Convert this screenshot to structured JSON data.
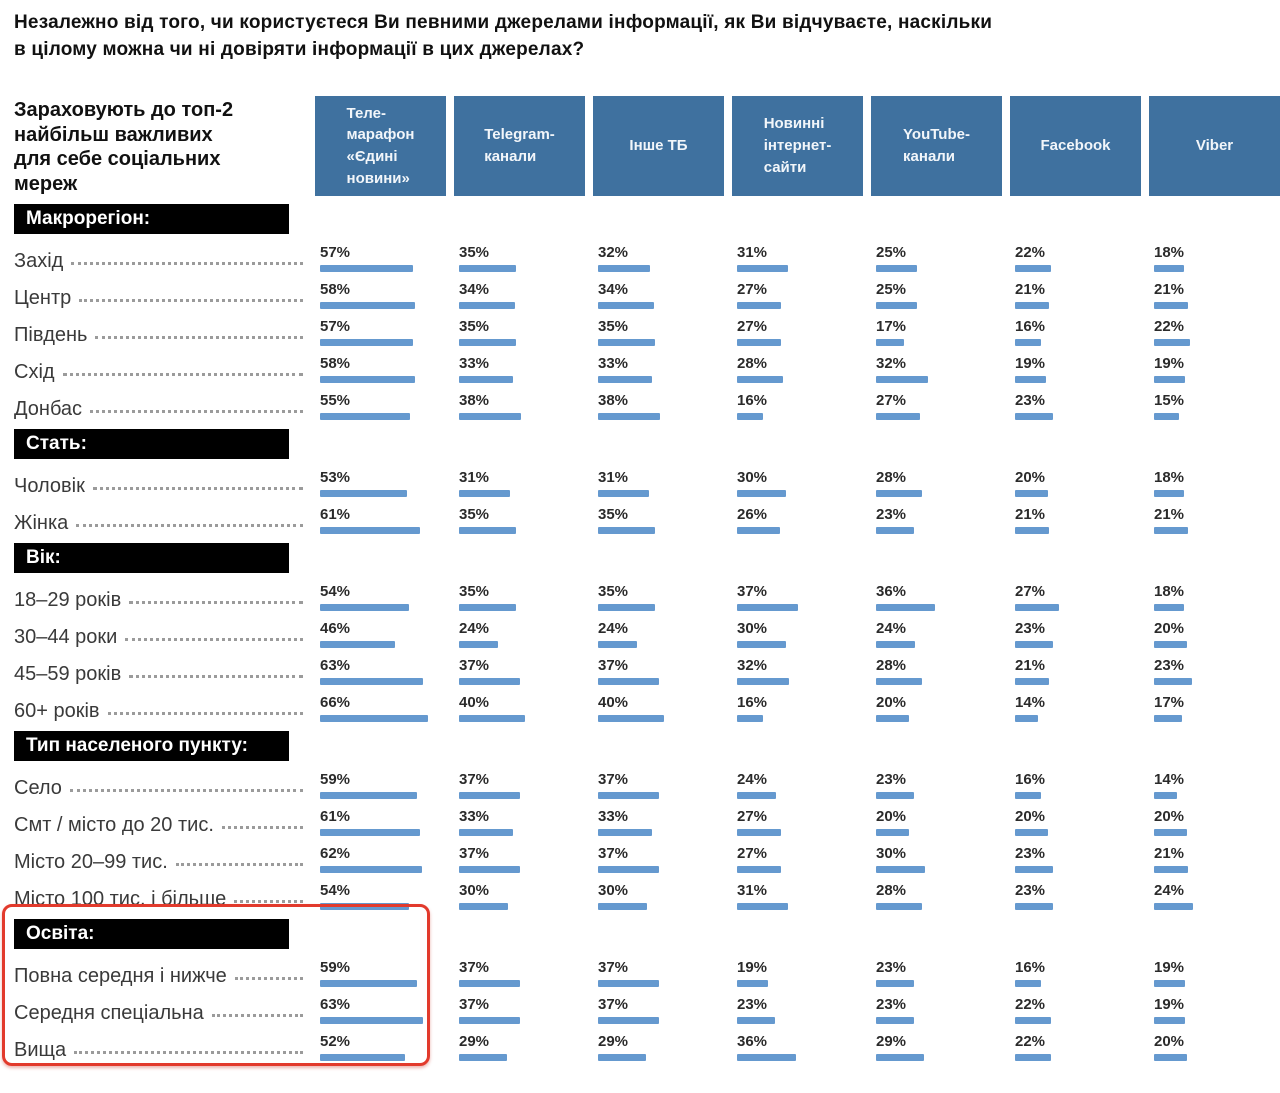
{
  "title": "Незалежно від того, чи користуєтеся Ви певними джерелами інформації, як Ви відчуваєте, наскільки\nв цілому можна чи ні довіряти інформації в цих джерелах?",
  "left_header": "Зараховують до топ-2\nнайбільш важливих\nдля себе соціальних\nмереж",
  "colors": {
    "column_header_bg": "#3f719f",
    "column_header_text": "#f2f6fa",
    "bar": "#6599cf",
    "group_header_bg": "#000000",
    "highlight_border": "#e23a2c"
  },
  "chart_data": {
    "type": "bar",
    "unit": "%",
    "value_range": [
      0,
      100
    ],
    "columns": [
      "Теле-\nмарафон\n«Єдині\nновини»",
      "Telegram-\nканали",
      "Інше ТБ",
      "Новинні\nінтернет-\nсайти",
      "YouTube-\nканали",
      "Facebook",
      "Viber"
    ],
    "highlighted_group": "Освіта:",
    "groups": [
      {
        "label": "Макрорегіон:",
        "rows": [
          {
            "label": "Захід",
            "values": [
              57,
              35,
              32,
              31,
              25,
              22,
              18
            ]
          },
          {
            "label": "Центр",
            "values": [
              58,
              34,
              34,
              27,
              25,
              21,
              21
            ]
          },
          {
            "label": "Південь",
            "values": [
              57,
              35,
              35,
              27,
              17,
              16,
              22
            ]
          },
          {
            "label": "Схід",
            "values": [
              58,
              33,
              33,
              28,
              32,
              19,
              19
            ]
          },
          {
            "label": "Донбас",
            "values": [
              55,
              38,
              38,
              16,
              27,
              23,
              15
            ]
          }
        ]
      },
      {
        "label": "Стать:",
        "rows": [
          {
            "label": "Чоловік",
            "values": [
              53,
              31,
              31,
              30,
              28,
              20,
              18
            ]
          },
          {
            "label": "Жінка",
            "values": [
              61,
              35,
              35,
              26,
              23,
              21,
              21
            ]
          }
        ]
      },
      {
        "label": "Вік:",
        "rows": [
          {
            "label": "18–29 років",
            "values": [
              54,
              35,
              35,
              37,
              36,
              27,
              18
            ]
          },
          {
            "label": "30–44 роки",
            "values": [
              46,
              24,
              24,
              30,
              24,
              23,
              20
            ]
          },
          {
            "label": "45–59 років",
            "values": [
              63,
              37,
              37,
              32,
              28,
              21,
              23
            ]
          },
          {
            "label": "60+ років",
            "values": [
              66,
              40,
              40,
              16,
              20,
              14,
              17
            ]
          }
        ]
      },
      {
        "label": "Тип населеного пункту:",
        "rows": [
          {
            "label": "Село",
            "values": [
              59,
              37,
              37,
              24,
              23,
              16,
              14
            ]
          },
          {
            "label": "Смт / місто до 20 тис.",
            "values": [
              61,
              33,
              33,
              27,
              20,
              20,
              20
            ]
          },
          {
            "label": "Місто 20–99 тис.",
            "values": [
              62,
              37,
              37,
              27,
              30,
              23,
              21
            ]
          },
          {
            "label": "Місто 100 тис. і більше",
            "values": [
              54,
              30,
              30,
              31,
              28,
              23,
              24
            ]
          }
        ]
      },
      {
        "label": "Освіта:",
        "rows": [
          {
            "label": "Повна середня і нижче",
            "values": [
              59,
              37,
              37,
              19,
              23,
              16,
              19
            ]
          },
          {
            "label": "Середня спеціальна",
            "values": [
              63,
              37,
              37,
              23,
              23,
              22,
              19
            ]
          },
          {
            "label": "Вища",
            "values": [
              52,
              29,
              29,
              36,
              29,
              22,
              20
            ]
          }
        ]
      }
    ]
  }
}
